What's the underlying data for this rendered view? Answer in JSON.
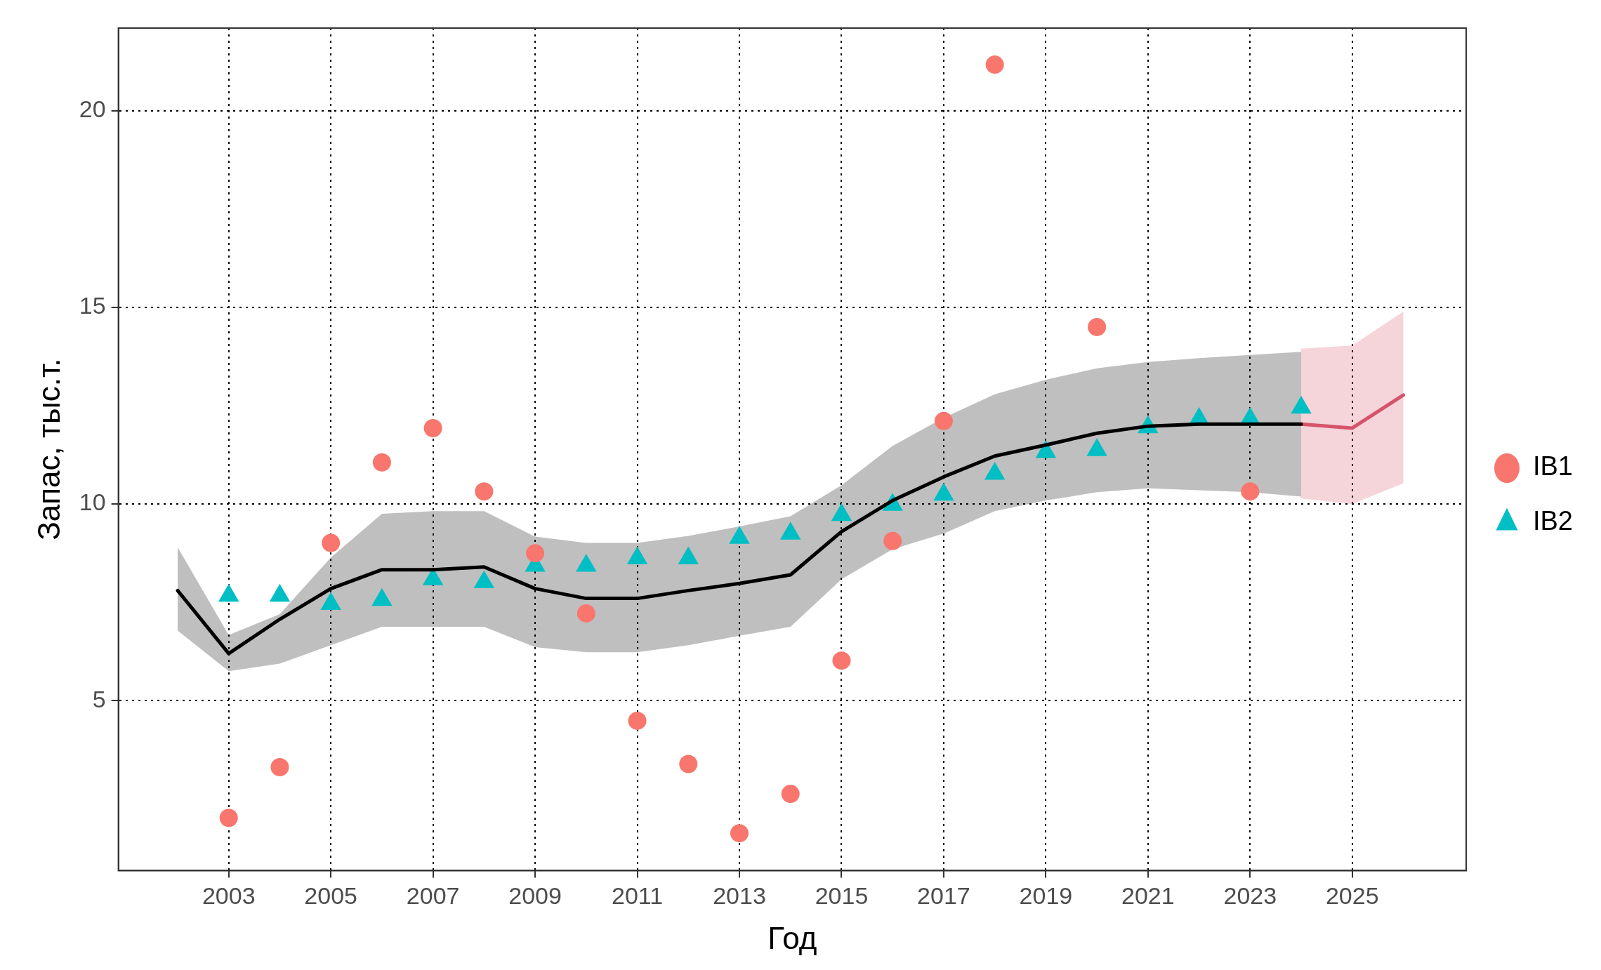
{
  "chart_data": {
    "type": "scatter",
    "xlabel": "Год",
    "ylabel": "Запас, тыс.т.",
    "xlim": [
      2000.84,
      2027.23
    ],
    "ylim": [
      0.68,
      22.1
    ],
    "xticks": [
      2003,
      2005,
      2007,
      2009,
      2011,
      2013,
      2015,
      2017,
      2019,
      2021,
      2023,
      2025
    ],
    "yticks": [
      5,
      10,
      15,
      20
    ],
    "grid": true,
    "legend": "right",
    "series": [
      {
        "type": "line",
        "color": "#000000",
        "marker": "none",
        "x": [
          2002,
          2003,
          2004,
          2005,
          2006,
          2007,
          2008,
          2009,
          2010,
          2011,
          2012,
          2013,
          2014,
          2015,
          2016,
          2017,
          2018,
          2019,
          2020,
          2021,
          2022,
          2023,
          2024
        ],
        "values": [
          7.8,
          6.2,
          7.07,
          7.85,
          8.33,
          8.33,
          8.4,
          7.85,
          7.6,
          7.6,
          7.8,
          7.98,
          8.2,
          9.3,
          10.09,
          10.69,
          11.22,
          11.5,
          11.8,
          11.98,
          12.03,
          12.03,
          12.03
        ],
        "lower": [
          6.78,
          5.75,
          5.94,
          6.41,
          6.88,
          6.88,
          6.88,
          6.36,
          6.23,
          6.23,
          6.41,
          6.65,
          6.88,
          8.09,
          8.85,
          9.25,
          9.82,
          10.09,
          10.3,
          10.4,
          10.35,
          10.3,
          10.19
        ],
        "upper": [
          8.9,
          6.67,
          7.2,
          8.64,
          9.75,
          9.82,
          9.82,
          9.17,
          9.01,
          9.01,
          9.19,
          9.43,
          9.69,
          10.48,
          11.48,
          12.19,
          12.79,
          13.16,
          13.45,
          13.61,
          13.71,
          13.79,
          13.87
        ]
      },
      {
        "type": "line",
        "color": "#d6546b",
        "marker": "none",
        "x": [
          2024,
          2025,
          2026
        ],
        "values": [
          12.03,
          11.93,
          12.77
        ],
        "lower": [
          10.14,
          10.0,
          10.53
        ],
        "upper": [
          13.95,
          14.03,
          14.89
        ]
      },
      {
        "name": "IB1",
        "color": "#f8766d",
        "marker": "circle",
        "x": [
          2003,
          2004,
          2005,
          2006,
          2007,
          2008,
          2009,
          2010,
          2011,
          2012,
          2013,
          2014,
          2015,
          2016,
          2017,
          2018,
          2020,
          2023
        ],
        "values": [
          2.02,
          3.31,
          9.01,
          11.06,
          11.93,
          10.32,
          8.75,
          7.22,
          4.49,
          3.39,
          1.63,
          2.63,
          6.02,
          9.06,
          12.11,
          21.17,
          14.5,
          10.32
        ]
      },
      {
        "name": "IB2",
        "color": "#00bfc4",
        "marker": "triangle",
        "x": [
          2003,
          2004,
          2005,
          2006,
          2007,
          2008,
          2009,
          2010,
          2011,
          2012,
          2013,
          2014,
          2015,
          2016,
          2017,
          2018,
          2019,
          2020,
          2021,
          2022,
          2023,
          2024
        ],
        "values": [
          7.67,
          7.67,
          7.46,
          7.56,
          8.09,
          8.01,
          8.43,
          8.43,
          8.62,
          8.62,
          9.14,
          9.25,
          9.72,
          9.98,
          10.24,
          10.77,
          11.32,
          11.37,
          11.95,
          12.16,
          12.16,
          12.45
        ]
      }
    ]
  }
}
